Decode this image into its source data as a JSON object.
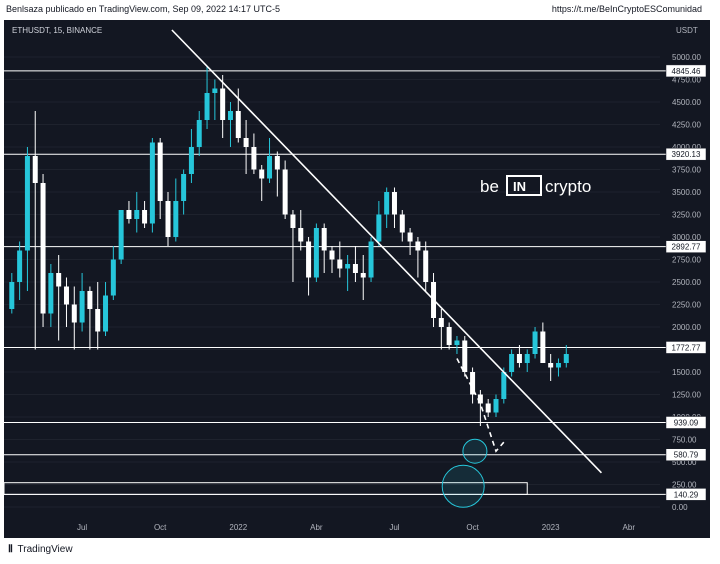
{
  "header": {
    "publisher": "Benlsaza publicado en TradingView.com, Sep 09, 2022 14:17 UTC-5",
    "link": "https://t.me/BeInCryptoESComunidad"
  },
  "footer": {
    "brand": "TradingView"
  },
  "watermark": {
    "prefix": "be",
    "middle": "IN",
    "suffix": "crypto"
  },
  "chart_data": {
    "type": "candlestick",
    "symbol_label": "ETHUSDT, 15, BINANCE",
    "currency": "USDT",
    "ylim": [
      -100,
      5300
    ],
    "y_ticks": [
      0,
      250,
      500,
      750,
      1000,
      1250,
      1500,
      1750,
      2000,
      2250,
      2500,
      2750,
      3000,
      3250,
      3500,
      3750,
      4000,
      4250,
      4500,
      4750,
      5000
    ],
    "y_tick_labels": [
      "0.00",
      "250.00",
      "500.00",
      "750.00",
      "1000.00",
      "1250.00",
      "1500.00",
      "1750.00",
      "2000.00",
      "2250.00",
      "2500.00",
      "2750.00",
      "3000.00",
      "3250.00",
      "3500.00",
      "3750.00",
      "4000.00",
      "4250.00",
      "4500.00",
      "4750.00",
      "5000.00"
    ],
    "x_labels": [
      {
        "label": "Jul",
        "idx": 9
      },
      {
        "label": "Oct",
        "idx": 19
      },
      {
        "label": "2022",
        "idx": 29
      },
      {
        "label": "Abr",
        "idx": 39
      },
      {
        "label": "Jul",
        "idx": 49
      },
      {
        "label": "Oct",
        "idx": 59
      },
      {
        "label": "2023",
        "idx": 69
      },
      {
        "label": "Abr",
        "idx": 79
      }
    ],
    "x_range": [
      -1,
      83
    ],
    "levels": [
      4845.46,
      3920.13,
      2892.77,
      1772.77,
      939.09,
      580.79,
      140.29
    ],
    "level_labels": [
      "4845.46",
      "3920.13",
      "2892.77",
      "1772.77",
      "939.09",
      "580.79",
      "140.29"
    ],
    "zone": {
      "low": 140,
      "high": 270,
      "idx_end": 66
    },
    "trendline": {
      "from": [
        20.5,
        5300
      ],
      "to": [
        75.5,
        380
      ]
    },
    "projection": [
      [
        57,
        1650
      ],
      [
        60,
        1150
      ],
      [
        62,
        620
      ],
      [
        63,
        720
      ]
    ],
    "circles": [
      {
        "idx": 59.3,
        "price": 620,
        "r": 12
      },
      {
        "idx": 57.8,
        "price": 230,
        "r": 21
      }
    ],
    "candles": [
      [
        2200,
        2600,
        2150,
        2500
      ],
      [
        2500,
        2950,
        2300,
        2850
      ],
      [
        2850,
        4000,
        2400,
        3900
      ],
      [
        3900,
        4400,
        1750,
        3600
      ],
      [
        3600,
        3700,
        2000,
        2150
      ],
      [
        2150,
        2700,
        2000,
        2600
      ],
      [
        2600,
        2800,
        1850,
        2450
      ],
      [
        2450,
        2550,
        2000,
        2250
      ],
      [
        2250,
        2450,
        1750,
        2050
      ],
      [
        2050,
        2600,
        1950,
        2400
      ],
      [
        2400,
        2450,
        1750,
        2200
      ],
      [
        2200,
        2500,
        1750,
        1950
      ],
      [
        1950,
        2500,
        1900,
        2350
      ],
      [
        2350,
        2900,
        2300,
        2750
      ],
      [
        2750,
        3300,
        2700,
        3300
      ],
      [
        3300,
        3400,
        3150,
        3200
      ],
      [
        3200,
        3500,
        3050,
        3300
      ],
      [
        3300,
        3400,
        3100,
        3150
      ],
      [
        3150,
        4100,
        3050,
        4050
      ],
      [
        4050,
        4100,
        3200,
        3400
      ],
      [
        3400,
        3500,
        2900,
        3000
      ],
      [
        3000,
        3650,
        2950,
        3400
      ],
      [
        3400,
        3750,
        3250,
        3700
      ],
      [
        3700,
        4200,
        3600,
        4000
      ],
      [
        4000,
        4400,
        3900,
        4300
      ],
      [
        4300,
        4900,
        4200,
        4600
      ],
      [
        4600,
        4750,
        4300,
        4650
      ],
      [
        4650,
        4800,
        4100,
        4300
      ],
      [
        4300,
        4500,
        4000,
        4400
      ],
      [
        4400,
        4650,
        4050,
        4100
      ],
      [
        4100,
        4300,
        3700,
        4000
      ],
      [
        4000,
        4150,
        3700,
        3750
      ],
      [
        3750,
        3800,
        3400,
        3650
      ],
      [
        3650,
        4100,
        3600,
        3900
      ],
      [
        3900,
        3950,
        3450,
        3750
      ],
      [
        3750,
        3850,
        3200,
        3250
      ],
      [
        3250,
        3300,
        2500,
        3100
      ],
      [
        3100,
        3300,
        2850,
        2950
      ],
      [
        2950,
        3000,
        2350,
        2550
      ],
      [
        2550,
        3150,
        2500,
        3100
      ],
      [
        3100,
        3150,
        2600,
        2850
      ],
      [
        2850,
        2900,
        2600,
        2750
      ],
      [
        2750,
        2950,
        2550,
        2650
      ],
      [
        2650,
        2800,
        2400,
        2700
      ],
      [
        2700,
        2900,
        2500,
        2600
      ],
      [
        2600,
        2800,
        2300,
        2550
      ],
      [
        2550,
        3000,
        2500,
        2950
      ],
      [
        2950,
        3400,
        2900,
        3250
      ],
      [
        3250,
        3550,
        3100,
        3500
      ],
      [
        3500,
        3550,
        3100,
        3250
      ],
      [
        3250,
        3300,
        2950,
        3050
      ],
      [
        3050,
        3100,
        2800,
        2950
      ],
      [
        2950,
        3000,
        2550,
        2850
      ],
      [
        2850,
        2950,
        2400,
        2500
      ],
      [
        2500,
        2600,
        2000,
        2100
      ],
      [
        2100,
        2200,
        1750,
        2000
      ],
      [
        2000,
        2050,
        1750,
        1800
      ],
      [
        1800,
        1900,
        1700,
        1850
      ],
      [
        1850,
        1900,
        1450,
        1500
      ],
      [
        1500,
        1550,
        1150,
        1250
      ],
      [
        1250,
        1300,
        900,
        1150
      ],
      [
        1150,
        1200,
        1000,
        1050
      ],
      [
        1050,
        1250,
        1000,
        1200
      ],
      [
        1200,
        1550,
        1150,
        1500
      ],
      [
        1500,
        1750,
        1450,
        1700
      ],
      [
        1700,
        1800,
        1550,
        1600
      ],
      [
        1600,
        1750,
        1500,
        1700
      ],
      [
        1700,
        2000,
        1650,
        1950
      ],
      [
        1950,
        2050,
        1600,
        1600
      ],
      [
        1600,
        1700,
        1400,
        1550
      ],
      [
        1550,
        1650,
        1450,
        1600
      ],
      [
        1600,
        1800,
        1550,
        1700
      ]
    ],
    "candle_colors": {
      "up": "#26c6da",
      "down": "#ffffff",
      "background": "#131722",
      "line": "#ffffff",
      "circle": "#26c6da"
    }
  }
}
